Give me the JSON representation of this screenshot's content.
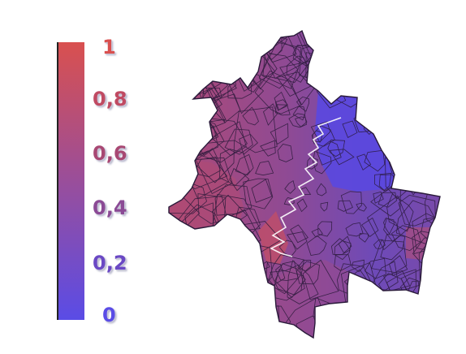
{
  "legend": {
    "ticks": [
      {
        "label": "1",
        "value": 1.0,
        "color": "#d9504f"
      },
      {
        "label": "0,8",
        "value": 0.8,
        "color": "#c04a62"
      },
      {
        "label": "0,6",
        "value": 0.6,
        "color": "#a84873"
      },
      {
        "label": "0,4",
        "value": 0.4,
        "color": "#8b4a95"
      },
      {
        "label": "0,2",
        "value": 0.2,
        "color": "#6a48c4"
      },
      {
        "label": "0",
        "value": 0.0,
        "color": "#5a4ce6"
      }
    ],
    "gradient_top": "#d9504f",
    "gradient_bottom": "#5a4ce6"
  },
  "map": {
    "region_colors": {
      "west": "#b04a73",
      "center": "#8a4a9a",
      "east": "#6a4ac0",
      "northeast": "#5a48e0",
      "south": "#9b4a8a",
      "southwest_hot": "#c04e68"
    },
    "border_color": "#2a1a3a",
    "boundary_line_color": "#ffffff"
  }
}
